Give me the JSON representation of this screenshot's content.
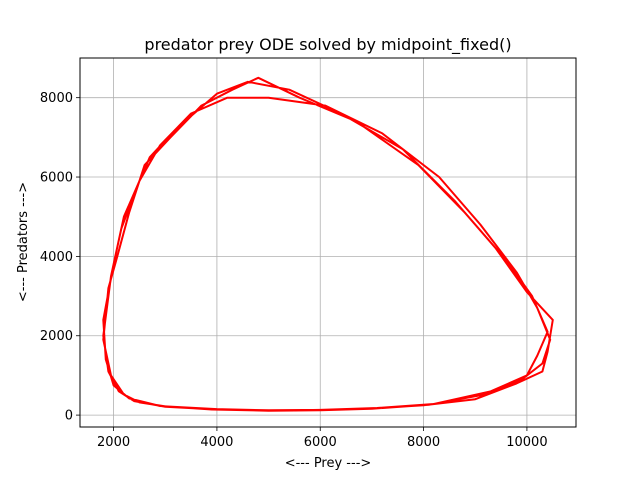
{
  "chart_data": {
    "type": "line",
    "title": "predator prey ODE solved by midpoint_fixed()",
    "xlabel": "<--- Prey --->",
    "ylabel": "<--- Predators --->",
    "xlim": [
      1350,
      10950
    ],
    "ylim": [
      -300,
      9000
    ],
    "xticks": [
      2000,
      4000,
      6000,
      8000,
      10000
    ],
    "yticks": [
      0,
      2000,
      4000,
      6000,
      8000
    ],
    "grid": true,
    "series": [
      {
        "color": "#ff0000",
        "points": [
          [
            2000,
            3800
          ],
          [
            2200,
            5000
          ],
          [
            2700,
            6500
          ],
          [
            3200,
            7200
          ],
          [
            4000,
            8100
          ],
          [
            4600,
            8400
          ],
          [
            5400,
            8200
          ],
          [
            6400,
            7600
          ],
          [
            7600,
            6700
          ],
          [
            8600,
            5400
          ],
          [
            9400,
            4200
          ],
          [
            10000,
            3100
          ],
          [
            10500,
            2400
          ],
          [
            10400,
            1600
          ],
          [
            10300,
            1100
          ],
          [
            9800,
            800
          ],
          [
            9000,
            400
          ],
          [
            8000,
            250
          ],
          [
            7000,
            170
          ],
          [
            6000,
            130
          ],
          [
            5000,
            120
          ],
          [
            4000,
            150
          ],
          [
            3000,
            220
          ],
          [
            2500,
            320
          ],
          [
            2200,
            520
          ],
          [
            1950,
            1000
          ],
          [
            1800,
            1900
          ],
          [
            1900,
            3200
          ],
          [
            2050,
            3900
          ],
          [
            2300,
            5100
          ],
          [
            2600,
            6300
          ],
          [
            3100,
            7000
          ],
          [
            3700,
            7800
          ],
          [
            4300,
            8200
          ],
          [
            4800,
            8500
          ],
          [
            5600,
            8000
          ],
          [
            6700,
            7400
          ],
          [
            7900,
            6300
          ],
          [
            8800,
            5100
          ],
          [
            9600,
            3900
          ],
          [
            10100,
            3000
          ],
          [
            10400,
            2100
          ],
          [
            10200,
            1500
          ],
          [
            10000,
            1000
          ],
          [
            9300,
            600
          ],
          [
            8200,
            280
          ],
          [
            7100,
            180
          ],
          [
            6000,
            130
          ],
          [
            5000,
            110
          ],
          [
            4000,
            140
          ],
          [
            3000,
            210
          ],
          [
            2400,
            350
          ],
          [
            2100,
            600
          ],
          [
            1900,
            1100
          ],
          [
            1800,
            2000
          ],
          [
            1950,
            3500
          ],
          [
            2150,
            4700
          ],
          [
            2500,
            5900
          ],
          [
            2900,
            6800
          ],
          [
            3500,
            7600
          ],
          [
            4200,
            8000
          ],
          [
            5000,
            8000
          ],
          [
            6100,
            7800
          ],
          [
            7200,
            7100
          ],
          [
            8300,
            6000
          ],
          [
            9100,
            4800
          ],
          [
            9800,
            3600
          ],
          [
            10200,
            2700
          ],
          [
            10450,
            1900
          ],
          [
            10300,
            1300
          ],
          [
            9900,
            900
          ],
          [
            9100,
            500
          ],
          [
            8100,
            260
          ],
          [
            7000,
            160
          ],
          [
            6000,
            120
          ],
          [
            5000,
            110
          ],
          [
            3900,
            140
          ],
          [
            2900,
            230
          ],
          [
            2300,
            420
          ],
          [
            2000,
            750
          ],
          [
            1850,
            1400
          ],
          [
            1800,
            2400
          ],
          [
            2000,
            3800
          ]
        ]
      }
    ]
  }
}
